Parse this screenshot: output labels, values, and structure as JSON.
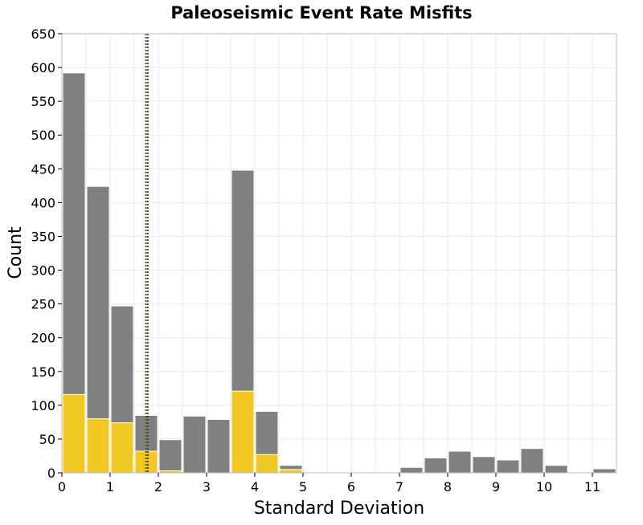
{
  "chart_data": {
    "type": "bar",
    "title": "Paleoseismic Event Rate Misfits",
    "xlabel": "Standard Deviation",
    "ylabel": "Count",
    "xlim": [
      0,
      11.5
    ],
    "ylim": [
      0,
      650
    ],
    "xticks": [
      0,
      1,
      2,
      3,
      4,
      5,
      6,
      7,
      8,
      9,
      10,
      11
    ],
    "yticks": [
      0,
      50,
      100,
      150,
      200,
      250,
      300,
      350,
      400,
      450,
      500,
      550,
      600,
      650
    ],
    "grid": true,
    "bin_width": 0.5,
    "series": [
      {
        "color": "#808080",
        "bins": [
          {
            "x0": 0.0,
            "value": 592
          },
          {
            "x0": 0.5,
            "value": 424
          },
          {
            "x0": 1.0,
            "value": 247
          },
          {
            "x0": 1.5,
            "value": 85
          },
          {
            "x0": 2.0,
            "value": 49
          },
          {
            "x0": 2.5,
            "value": 84
          },
          {
            "x0": 3.0,
            "value": 79
          },
          {
            "x0": 3.5,
            "value": 448
          },
          {
            "x0": 4.0,
            "value": 91
          },
          {
            "x0": 4.5,
            "value": 11
          },
          {
            "x0": 7.0,
            "value": 8
          },
          {
            "x0": 7.5,
            "value": 22
          },
          {
            "x0": 8.0,
            "value": 32
          },
          {
            "x0": 8.5,
            "value": 24
          },
          {
            "x0": 9.0,
            "value": 19
          },
          {
            "x0": 9.5,
            "value": 36
          },
          {
            "x0": 10.0,
            "value": 11
          },
          {
            "x0": 11.0,
            "value": 6
          }
        ]
      },
      {
        "color": "#f2c822",
        "bins": [
          {
            "x0": 0.0,
            "value": 116
          },
          {
            "x0": 0.5,
            "value": 80
          },
          {
            "x0": 1.0,
            "value": 74
          },
          {
            "x0": 1.5,
            "value": 32
          },
          {
            "x0": 2.0,
            "value": 3
          },
          {
            "x0": 3.5,
            "value": 121
          },
          {
            "x0": 4.0,
            "value": 27
          },
          {
            "x0": 4.5,
            "value": 5
          }
        ]
      }
    ],
    "vlines": [
      {
        "x": 1.74,
        "color": "#5c6b1f",
        "style": "dotted"
      },
      {
        "x": 1.78,
        "color": "#3a3a3a",
        "style": "dotted"
      }
    ],
    "colors": {
      "grid": "#ebebeb",
      "frame": "#bbbbbb",
      "bar_edge": "#ffffff"
    }
  }
}
